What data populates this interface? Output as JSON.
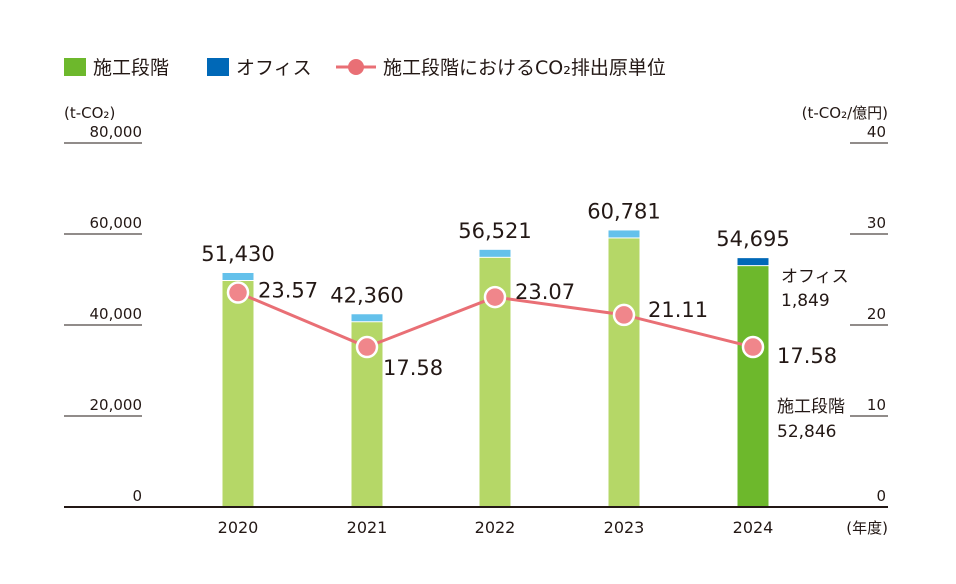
{
  "chart_data": {
    "type": "bar+line",
    "legend": {
      "construction": "施工段階",
      "office": "オフィス",
      "intensity": "施工段階におけるCO₂排出原単位",
      "placement": "top-left"
    },
    "left_axis": {
      "unit": "(t-CO₂)",
      "ticks": [
        0,
        20000,
        40000,
        60000,
        80000
      ],
      "tick_labels": [
        "0",
        "20,000",
        "40,000",
        "60,000",
        "80,000"
      ],
      "ylim": [
        0,
        80000
      ]
    },
    "right_axis": {
      "unit": "(t-CO₂/億円)",
      "ticks": [
        0,
        10,
        20,
        30,
        40
      ],
      "tick_labels": [
        "0",
        "10",
        "20",
        "30",
        "40"
      ],
      "ylim": [
        0,
        40
      ]
    },
    "x_unit": "(年度)",
    "categories": [
      "2020",
      "2021",
      "2022",
      "2023",
      "2024"
    ],
    "total_labels": [
      "51,430",
      "42,360",
      "56,521",
      "60,781",
      "54,695"
    ],
    "totals": [
      51430,
      42360,
      56521,
      60781,
      54695
    ],
    "construction": [
      49730,
      40560,
      54721,
      58981,
      52846
    ],
    "office": [
      1700,
      1800,
      1800,
      1800,
      1849
    ],
    "intensity": [
      23.57,
      17.58,
      23.07,
      21.11,
      17.58
    ],
    "intensity_labels": [
      "23.57",
      "17.58",
      "23.07",
      "21.11",
      "17.58"
    ],
    "annotation_2024": {
      "office_label": "オフィス",
      "office_value": "1,849",
      "construction_label": "施工段階",
      "construction_value": "52,846"
    },
    "colors": {
      "construction_highlight": "#6db82c",
      "construction": "#b5d767",
      "office_highlight": "#0068b7",
      "office": "#64c1eb",
      "intensity_line": "#e96f75",
      "intensity_marker": "#f0868b",
      "axis": "#231815"
    }
  }
}
